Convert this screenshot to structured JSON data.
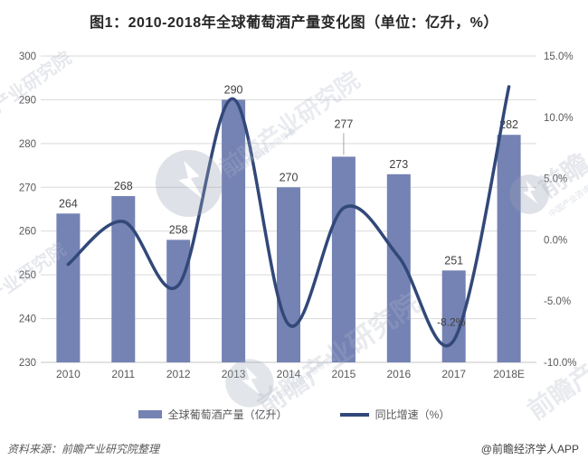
{
  "title": "图1：2010-2018年全球葡萄酒产量变化图（单位：亿升，%）",
  "footer": {
    "source": "资料来源：前瞻产业研究院整理",
    "credit": "@前瞻经济学人APP"
  },
  "watermarks": {
    "brand": "前瞻产业研究院",
    "brand_short": "前瞻",
    "tagline": "中国产业咨询领导者",
    "logo_name": "qianzhan-circle-logo"
  },
  "colors": {
    "bar": "#7482B4",
    "line": "#324879",
    "grid": "#D9D9D9",
    "axis_text": "#595959",
    "data_label": "#404040",
    "watermark": "#AEB6C6"
  },
  "chart_data": {
    "type": "combo-bar-line",
    "title": "图1：2010-2018年全球葡萄酒产量变化图（单位：亿升，%）",
    "categories": [
      "2010",
      "2011",
      "2012",
      "2013",
      "2014",
      "2015",
      "2016",
      "2017",
      "2018E"
    ],
    "series": [
      {
        "name": "全球葡萄酒产量（亿升）",
        "type": "bar",
        "axis": "left",
        "color": "#7482B4",
        "values": [
          264,
          268,
          258,
          290,
          270,
          277,
          273,
          251,
          282
        ],
        "data_labels": [
          "264",
          "268",
          "258",
          "290",
          "270",
          "277",
          "273",
          "251",
          "282"
        ],
        "callout_category": "2015"
      },
      {
        "name": "同比增速（%）",
        "type": "line",
        "axis": "right",
        "color": "#324879",
        "values": [
          -2.0,
          1.5,
          -3.7,
          11.5,
          -6.9,
          2.6,
          -1.4,
          -8.2,
          12.5
        ],
        "annotations": [
          {
            "category": "2017",
            "text": "-8.2%"
          }
        ]
      }
    ],
    "left_axis": {
      "min": 230,
      "max": 300,
      "step": 10,
      "tick_values": [
        300,
        290,
        280,
        270,
        260,
        250,
        240,
        230
      ],
      "tick_labels": [
        "300",
        "290",
        "280",
        "270",
        "260",
        "250",
        "240",
        "230"
      ]
    },
    "right_axis": {
      "min": -10,
      "max": 15,
      "step": 5,
      "tick_values": [
        15,
        10,
        5,
        0,
        -5,
        -10
      ],
      "tick_labels": [
        "15.0%",
        "10.0%",
        "5.0%",
        "0.0%",
        "-5.0%",
        "-10.0%"
      ]
    },
    "grid": true,
    "legend_position": "bottom"
  }
}
